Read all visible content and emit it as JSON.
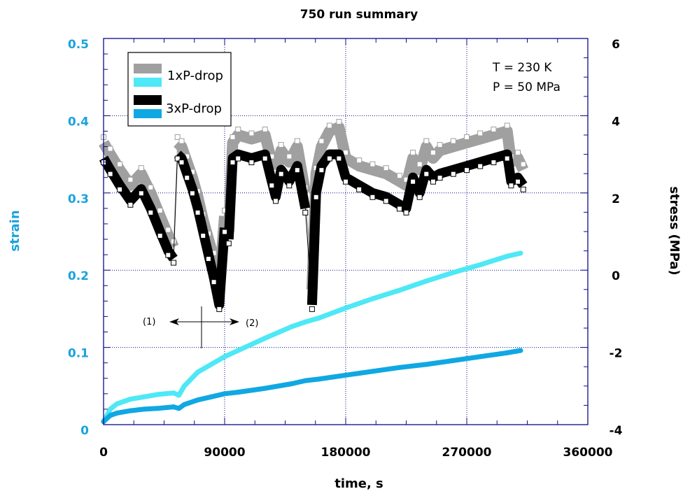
{
  "chart_data": {
    "type": "scatter",
    "title": "750 run summary",
    "xlabel": "time, s",
    "ylabel_left": "strain",
    "ylabel_right": "stress (MPa)",
    "xlim": [
      0,
      360000
    ],
    "ylim_left": [
      0,
      0.5
    ],
    "ylim_right": [
      -4,
      6
    ],
    "x_ticks": [
      0,
      90000,
      180000,
      270000,
      360000
    ],
    "x_tick_labels": [
      "0",
      "90000",
      "180000",
      "270000",
      "360000"
    ],
    "y_left_ticks": [
      0,
      0.1,
      0.2,
      0.3,
      0.4,
      0.5
    ],
    "y_left_tick_labels": [
      "0",
      "0.1",
      "0.2",
      "0.3",
      "0.4",
      "0.5"
    ],
    "y_right_ticks": [
      -4,
      -2,
      0,
      2,
      4,
      6
    ],
    "y_right_tick_labels": [
      "-4",
      "-2",
      "0",
      "2",
      "4",
      "6"
    ],
    "grid": true,
    "legend_position": "top-left",
    "legend": [
      {
        "label": "1xP-drop",
        "stress_color": "#a0a0a0",
        "strain_color": "#4ee8f6"
      },
      {
        "label": "3xP-drop",
        "stress_color": "#000000",
        "strain_color": "#10a8e2"
      }
    ],
    "annotations": {
      "conditions": [
        "T = 230 K",
        "P = 50 MPa"
      ],
      "marker_left": "(1)",
      "marker_right": "(2)",
      "divider_time": 72000
    },
    "series": [
      {
        "name": "1xP-drop stress",
        "axis": "right",
        "color": "#a0a0a0",
        "x": [
          0,
          5000,
          12000,
          20000,
          28000,
          35000,
          42000,
          48000,
          52000,
          55000,
          58000,
          62000,
          66000,
          70000,
          74000,
          78000,
          82000,
          86000,
          90000,
          93000,
          96000,
          100000,
          110000,
          120000,
          125000,
          128000,
          132000,
          138000,
          144000,
          150000,
          155000,
          158000,
          162000,
          168000,
          175000,
          180000,
          190000,
          200000,
          210000,
          220000,
          225000,
          230000,
          235000,
          240000,
          245000,
          250000,
          260000,
          270000,
          280000,
          290000,
          300000,
          303000,
          308000,
          312000
        ],
        "y": [
          3.3,
          3.0,
          2.6,
          2.2,
          2.5,
          2.0,
          1.4,
          0.9,
          0.6,
          3.3,
          3.2,
          2.8,
          2.4,
          1.9,
          1.3,
          0.8,
          0.3,
          -0.4,
          1.4,
          1.0,
          3.3,
          3.5,
          3.4,
          3.5,
          2.8,
          2.4,
          3.1,
          2.8,
          3.2,
          2.0,
          -0.5,
          2.5,
          3.2,
          3.6,
          3.7,
          2.9,
          2.7,
          2.6,
          2.5,
          2.3,
          2.2,
          2.9,
          2.6,
          3.2,
          2.9,
          3.1,
          3.2,
          3.3,
          3.4,
          3.5,
          3.6,
          2.8,
          2.9,
          2.6
        ]
      },
      {
        "name": "3xP-drop stress",
        "axis": "right",
        "color": "#000000",
        "x": [
          0,
          5000,
          12000,
          20000,
          28000,
          35000,
          42000,
          48000,
          52000,
          55000,
          58000,
          62000,
          66000,
          70000,
          74000,
          78000,
          82000,
          86000,
          90000,
          93000,
          96000,
          100000,
          110000,
          120000,
          125000,
          128000,
          132000,
          138000,
          144000,
          150000,
          155000,
          158000,
          162000,
          168000,
          175000,
          180000,
          190000,
          200000,
          210000,
          220000,
          225000,
          230000,
          235000,
          240000,
          245000,
          250000,
          260000,
          270000,
          280000,
          290000,
          300000,
          303000,
          308000,
          312000
        ],
        "y": [
          2.9,
          2.6,
          2.2,
          1.8,
          2.1,
          1.6,
          1.0,
          0.5,
          0.3,
          3.0,
          2.9,
          2.5,
          2.1,
          1.6,
          1.0,
          0.4,
          -0.2,
          -0.9,
          1.1,
          0.8,
          2.9,
          3.0,
          2.9,
          3.0,
          2.3,
          1.9,
          2.6,
          2.3,
          2.7,
          1.6,
          -0.9,
          2.0,
          2.7,
          3.0,
          3.0,
          2.4,
          2.2,
          2.0,
          1.9,
          1.7,
          1.6,
          2.4,
          2.0,
          2.6,
          2.4,
          2.5,
          2.6,
          2.7,
          2.8,
          2.9,
          3.0,
          2.3,
          2.4,
          2.2
        ]
      },
      {
        "name": "1xP-drop strain",
        "axis": "left",
        "color": "#4ee8f6",
        "x": [
          0,
          5000,
          10000,
          20000,
          30000,
          40000,
          52000,
          56000,
          60000,
          70000,
          80000,
          90000,
          100000,
          120000,
          140000,
          150000,
          160000,
          180000,
          200000,
          220000,
          240000,
          260000,
          280000,
          300000,
          310000
        ],
        "y": [
          0.004,
          0.02,
          0.027,
          0.033,
          0.036,
          0.039,
          0.041,
          0.038,
          0.05,
          0.068,
          0.078,
          0.088,
          0.096,
          0.112,
          0.127,
          0.133,
          0.138,
          0.151,
          0.163,
          0.174,
          0.186,
          0.197,
          0.207,
          0.218,
          0.222
        ]
      },
      {
        "name": "3xP-drop strain",
        "axis": "left",
        "color": "#10a8e2",
        "x": [
          0,
          5000,
          10000,
          20000,
          30000,
          40000,
          52000,
          56000,
          60000,
          70000,
          80000,
          90000,
          100000,
          120000,
          140000,
          150000,
          160000,
          180000,
          200000,
          220000,
          240000,
          260000,
          280000,
          300000,
          310000
        ],
        "y": [
          0.004,
          0.012,
          0.015,
          0.018,
          0.02,
          0.021,
          0.023,
          0.021,
          0.026,
          0.032,
          0.036,
          0.04,
          0.042,
          0.047,
          0.053,
          0.057,
          0.059,
          0.064,
          0.069,
          0.074,
          0.078,
          0.083,
          0.088,
          0.093,
          0.096
        ]
      }
    ]
  }
}
